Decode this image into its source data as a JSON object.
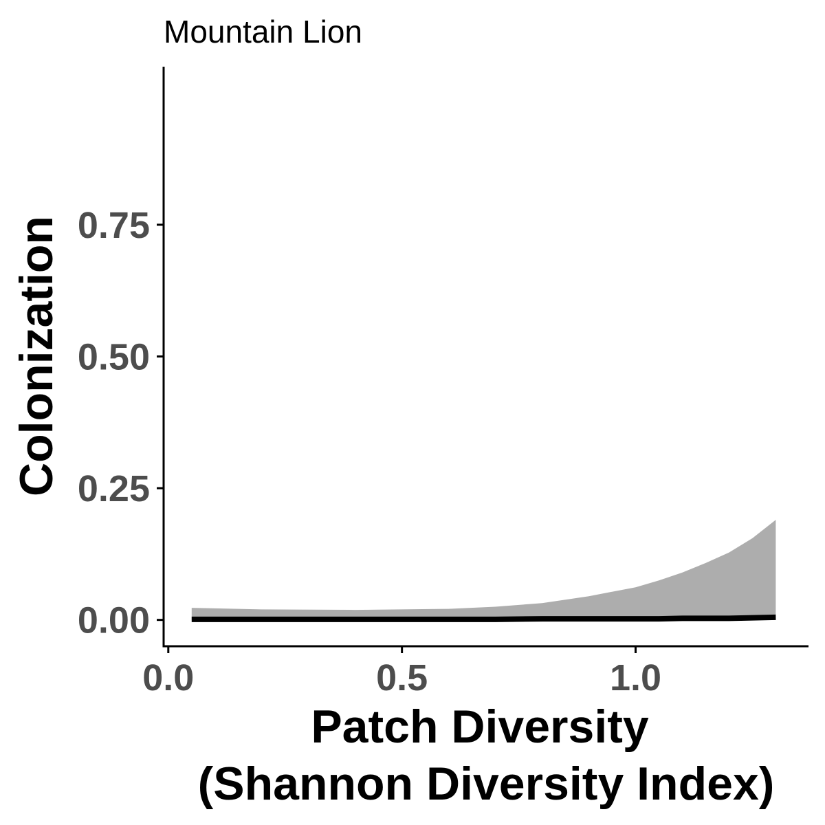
{
  "chart_data": {
    "type": "line",
    "title": "Mountain Lion",
    "xlabel_lines": [
      "Patch Diversity",
      "(Shannon Diversity Index)"
    ],
    "ylabel": "Colonization",
    "xlim": [
      -0.01,
      1.37
    ],
    "ylim": [
      -0.05,
      1.05
    ],
    "x_ticks": [
      {
        "value": 0.0,
        "label": "0.0"
      },
      {
        "value": 0.5,
        "label": "0.5"
      },
      {
        "value": 1.0,
        "label": "1.0"
      }
    ],
    "y_ticks": [
      {
        "value": 0.0,
        "label": "0.00"
      },
      {
        "value": 0.25,
        "label": "0.25"
      },
      {
        "value": 0.5,
        "label": "0.50"
      },
      {
        "value": 0.75,
        "label": "0.75"
      }
    ],
    "grid": false,
    "legend": "none",
    "series": [
      {
        "x": [
          0.05,
          0.2,
          0.4,
          0.6,
          0.7,
          0.8,
          0.9,
          1.0,
          1.05,
          1.1,
          1.15,
          1.2,
          1.25,
          1.3
        ],
        "y": [
          0.001,
          0.001,
          0.001,
          0.001,
          0.001,
          0.002,
          0.002,
          0.002,
          0.002,
          0.003,
          0.003,
          0.003,
          0.004,
          0.005
        ],
        "lower": [
          0.0,
          0.0,
          0.0,
          0.0,
          0.0,
          0.0,
          0.0,
          0.0,
          0.0,
          0.0,
          0.0,
          0.0,
          0.0,
          0.0
        ],
        "upper": [
          0.023,
          0.02,
          0.019,
          0.021,
          0.025,
          0.032,
          0.045,
          0.062,
          0.075,
          0.09,
          0.108,
          0.128,
          0.155,
          0.19
        ],
        "line_color": "#000000",
        "band_color": "#adadad"
      }
    ]
  }
}
